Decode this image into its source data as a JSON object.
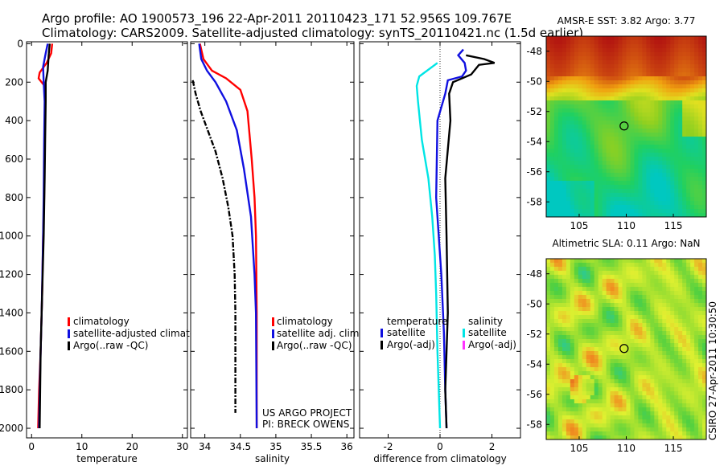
{
  "header": {
    "line1": "Argo profile: AO 1900573_196 22-Apr-2011 20110423_171 52.956S 109.767E",
    "line2": "Climatology: CARS2009. Satellite-adjusted climatology: synTS_20110421.nc (1.5d earlier)"
  },
  "side_caption": "CSIRO 27-Apr-2011 10:30:50",
  "credits": {
    "line1": "US ARGO PROJECT",
    "line2": "PI: BRECK OWENS"
  },
  "colors": {
    "climatology": "#ff0000",
    "satellite": "#1010e0",
    "argo": "#000000",
    "salinity_satellite": "#00e5e5",
    "salinity_argo": "#ff33ff"
  },
  "chart_data": [
    {
      "type": "line",
      "xlabel": "temperature",
      "ylabel": "",
      "xlim": [
        -1,
        31
      ],
      "ylim": [
        2050,
        -10
      ],
      "x_ticks": [
        0,
        10,
        20,
        30
      ],
      "y_ticks": [
        0,
        200,
        400,
        600,
        800,
        1000,
        1200,
        1400,
        1600,
        1800,
        2000
      ],
      "legend": [
        "climatology",
        "satellite-adjusted climatolog",
        "Argo(..raw -QC)"
      ],
      "series": [
        {
          "name": "climatology",
          "color": "#ff0000",
          "dash": "solid",
          "points": [
            [
              4.1,
              0
            ],
            [
              3.9,
              50
            ],
            [
              3.0,
              100
            ],
            [
              1.6,
              150
            ],
            [
              1.4,
              180
            ],
            [
              2.6,
              220
            ],
            [
              2.7,
              300
            ],
            [
              2.6,
              500
            ],
            [
              2.5,
              800
            ],
            [
              2.3,
              1000
            ],
            [
              2.1,
              1300
            ],
            [
              1.8,
              1600
            ],
            [
              1.5,
              1800
            ],
            [
              1.3,
              2000
            ]
          ]
        },
        {
          "name": "satellite-adjusted climatolog",
          "color": "#1010e0",
          "dash": "solid",
          "points": [
            [
              3.2,
              0
            ],
            [
              2.8,
              50
            ],
            [
              2.3,
              120
            ],
            [
              2.4,
              200
            ],
            [
              2.6,
              300
            ],
            [
              2.5,
              500
            ],
            [
              2.4,
              800
            ],
            [
              2.3,
              1000
            ],
            [
              2.0,
              1400
            ],
            [
              1.7,
              1700
            ],
            [
              1.5,
              2000
            ]
          ]
        },
        {
          "name": "Argo(..raw -QC)",
          "color": "#000000",
          "dash": "solid",
          "points": [
            [
              3.6,
              0
            ],
            [
              3.4,
              60
            ],
            [
              3.2,
              140
            ],
            [
              2.8,
              200
            ],
            [
              2.8,
              300
            ],
            [
              2.7,
              500
            ],
            [
              2.6,
              700
            ],
            [
              2.4,
              1000
            ],
            [
              2.1,
              1300
            ],
            [
              1.8,
              1600
            ],
            [
              1.6,
              2000
            ]
          ]
        }
      ]
    },
    {
      "type": "line",
      "xlabel": "salinity",
      "ylabel": "",
      "xlim": [
        33.8,
        36.1
      ],
      "ylim": [
        2050,
        -10
      ],
      "x_ticks": [
        34,
        34.5,
        35,
        35.5,
        36
      ],
      "legend": [
        "climatology",
        "satellite adj. clim.",
        "Argo(..raw -QC)"
      ],
      "series": [
        {
          "name": "climatology",
          "color": "#ff0000",
          "dash": "solid",
          "points": [
            [
              33.93,
              0
            ],
            [
              33.98,
              80
            ],
            [
              34.1,
              140
            ],
            [
              34.3,
              180
            ],
            [
              34.5,
              240
            ],
            [
              34.6,
              350
            ],
            [
              34.66,
              600
            ],
            [
              34.7,
              800
            ],
            [
              34.72,
              1000
            ],
            [
              34.73,
              1400
            ],
            [
              34.73,
              2000
            ]
          ]
        },
        {
          "name": "satellite adj. clim.",
          "color": "#1010e0",
          "dash": "solid",
          "points": [
            [
              33.92,
              0
            ],
            [
              33.95,
              80
            ],
            [
              34.03,
              140
            ],
            [
              34.15,
              200
            ],
            [
              34.3,
              300
            ],
            [
              34.45,
              450
            ],
            [
              34.55,
              650
            ],
            [
              34.65,
              900
            ],
            [
              34.7,
              1200
            ],
            [
              34.72,
              1400
            ],
            [
              34.73,
              2000
            ]
          ]
        },
        {
          "name": "Argo(..raw -QC)",
          "color": "#000000",
          "dash": "dashdot",
          "points": [
            [
              33.83,
              190
            ],
            [
              33.87,
              260
            ],
            [
              33.94,
              350
            ],
            [
              34.04,
              450
            ],
            [
              34.15,
              560
            ],
            [
              34.25,
              700
            ],
            [
              34.33,
              850
            ],
            [
              34.39,
              1000
            ],
            [
              34.42,
              1200
            ],
            [
              34.43,
              1400
            ],
            [
              34.43,
              1920
            ]
          ]
        }
      ]
    },
    {
      "type": "line",
      "xlabel": "difference from climatology",
      "ylabel": "",
      "xlim": [
        -3.1,
        3.1
      ],
      "ylim": [
        2050,
        -10
      ],
      "x_ticks": [
        -2,
        0,
        2
      ],
      "legend": [
        "temperature",
        "satellite",
        "Argo(-adj)",
        "salinity",
        "satellite",
        "Argo(-adj)"
      ],
      "series": [
        {
          "name": "temperature satellite",
          "color": "#1010e0",
          "dash": "solid",
          "points": [
            [
              0.9,
              30
            ],
            [
              0.7,
              60
            ],
            [
              0.95,
              100
            ],
            [
              1.0,
              140
            ],
            [
              0.85,
              170
            ],
            [
              0.3,
              190
            ],
            [
              0.2,
              260
            ],
            [
              -0.1,
              400
            ],
            [
              -0.15,
              800
            ],
            [
              0.05,
              1200
            ],
            [
              0.15,
              1500
            ],
            [
              0.2,
              1800
            ],
            [
              0.25,
              2000
            ]
          ]
        },
        {
          "name": "temperature Argo(-adj)",
          "color": "#000000",
          "dash": "solid",
          "points": [
            [
              1.0,
              60
            ],
            [
              1.7,
              80
            ],
            [
              2.1,
              100
            ],
            [
              1.5,
              110
            ],
            [
              1.2,
              160
            ],
            [
              0.5,
              200
            ],
            [
              0.35,
              260
            ],
            [
              0.4,
              400
            ],
            [
              0.2,
              700
            ],
            [
              0.25,
              1000
            ],
            [
              0.3,
              1400
            ],
            [
              0.2,
              1800
            ],
            [
              0.25,
              2000
            ]
          ]
        },
        {
          "name": "salinity satellite",
          "color": "#00e5e5",
          "dash": "solid",
          "points": [
            [
              -0.1,
              100
            ],
            [
              -0.8,
              170
            ],
            [
              -0.9,
              220
            ],
            [
              -0.85,
              300
            ],
            [
              -0.7,
              500
            ],
            [
              -0.45,
              700
            ],
            [
              -0.3,
              900
            ],
            [
              -0.2,
              1100
            ],
            [
              -0.15,
              1300
            ],
            [
              -0.1,
              1600
            ],
            [
              -0.05,
              1800
            ],
            [
              0.0,
              2000
            ]
          ]
        }
      ]
    },
    {
      "type": "heatmap",
      "title": "AMSR-E SST: 3.82 Argo: 3.77",
      "xlim": [
        101.5,
        118.5
      ],
      "ylim": [
        -59,
        -47
      ],
      "x_ticks": [
        105,
        110,
        115
      ],
      "y_ticks": [
        -48,
        -50,
        -52,
        -54,
        -56,
        -58
      ],
      "marker": [
        109.77,
        -52.96
      ],
      "palette": [
        "#00c8c0",
        "#20d060",
        "#90d020",
        "#e0e020",
        "#f0a010",
        "#d05010",
        "#b01010"
      ]
    },
    {
      "type": "heatmap",
      "title": "Altimetric SLA: 0.11 Argo: NaN",
      "xlim": [
        101.5,
        118.5
      ],
      "ylim": [
        -59,
        -47
      ],
      "x_ticks": [
        105,
        110,
        115
      ],
      "y_ticks": [
        -48,
        -50,
        -52,
        -54,
        -56,
        -58
      ],
      "marker": [
        109.77,
        -52.96
      ],
      "palette": [
        "#20c8b0",
        "#50d040",
        "#a0e030",
        "#e0f030",
        "#f09020",
        "#e06020"
      ]
    }
  ]
}
